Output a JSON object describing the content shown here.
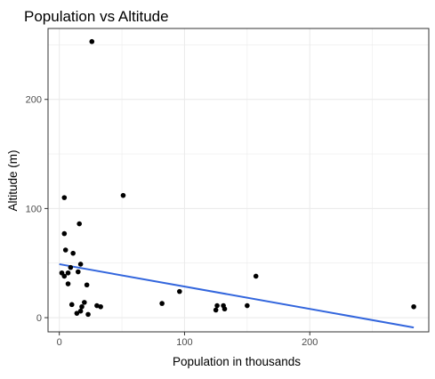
{
  "chart_data": {
    "type": "scatter",
    "title": "Population vs Altitude",
    "xlabel": "Population in thousands",
    "ylabel": "Altitude (m)",
    "xlim": [
      -9,
      295
    ],
    "ylim": [
      -13,
      265
    ],
    "x_ticks": [
      0,
      100,
      200
    ],
    "y_ticks": [
      0,
      100,
      200
    ],
    "x_minor_ticks": [
      50,
      150,
      250
    ],
    "y_minor_ticks": [
      50,
      150,
      250
    ],
    "grid": true,
    "legend": "none",
    "point_color": "#000000",
    "trend_color": "#3366dd",
    "panel_border_color": "#333333",
    "grid_color": "#ebebeb",
    "series": [
      {
        "values": [
          [
            26,
            253
          ],
          [
            51,
            112
          ],
          [
            4,
            110
          ],
          [
            16,
            86
          ],
          [
            4,
            77
          ],
          [
            5,
            62
          ],
          [
            11,
            59
          ],
          [
            17,
            49
          ],
          [
            9,
            46
          ],
          [
            2,
            41
          ],
          [
            15,
            42
          ],
          [
            7,
            41
          ],
          [
            4,
            38
          ],
          [
            157,
            38
          ],
          [
            22,
            30
          ],
          [
            7,
            31
          ],
          [
            96,
            24
          ],
          [
            82,
            13
          ],
          [
            20,
            14
          ],
          [
            10,
            12
          ],
          [
            18,
            10
          ],
          [
            30,
            11
          ],
          [
            33,
            10
          ],
          [
            126,
            11
          ],
          [
            131,
            11
          ],
          [
            150,
            11
          ],
          [
            283,
            10
          ],
          [
            125,
            7
          ],
          [
            132,
            8
          ],
          [
            14,
            4
          ],
          [
            23,
            3
          ],
          [
            17,
            6
          ]
        ]
      }
    ],
    "trend_line": {
      "method": "linear",
      "x": [
        0,
        283
      ],
      "y": [
        49,
        -9
      ]
    }
  }
}
